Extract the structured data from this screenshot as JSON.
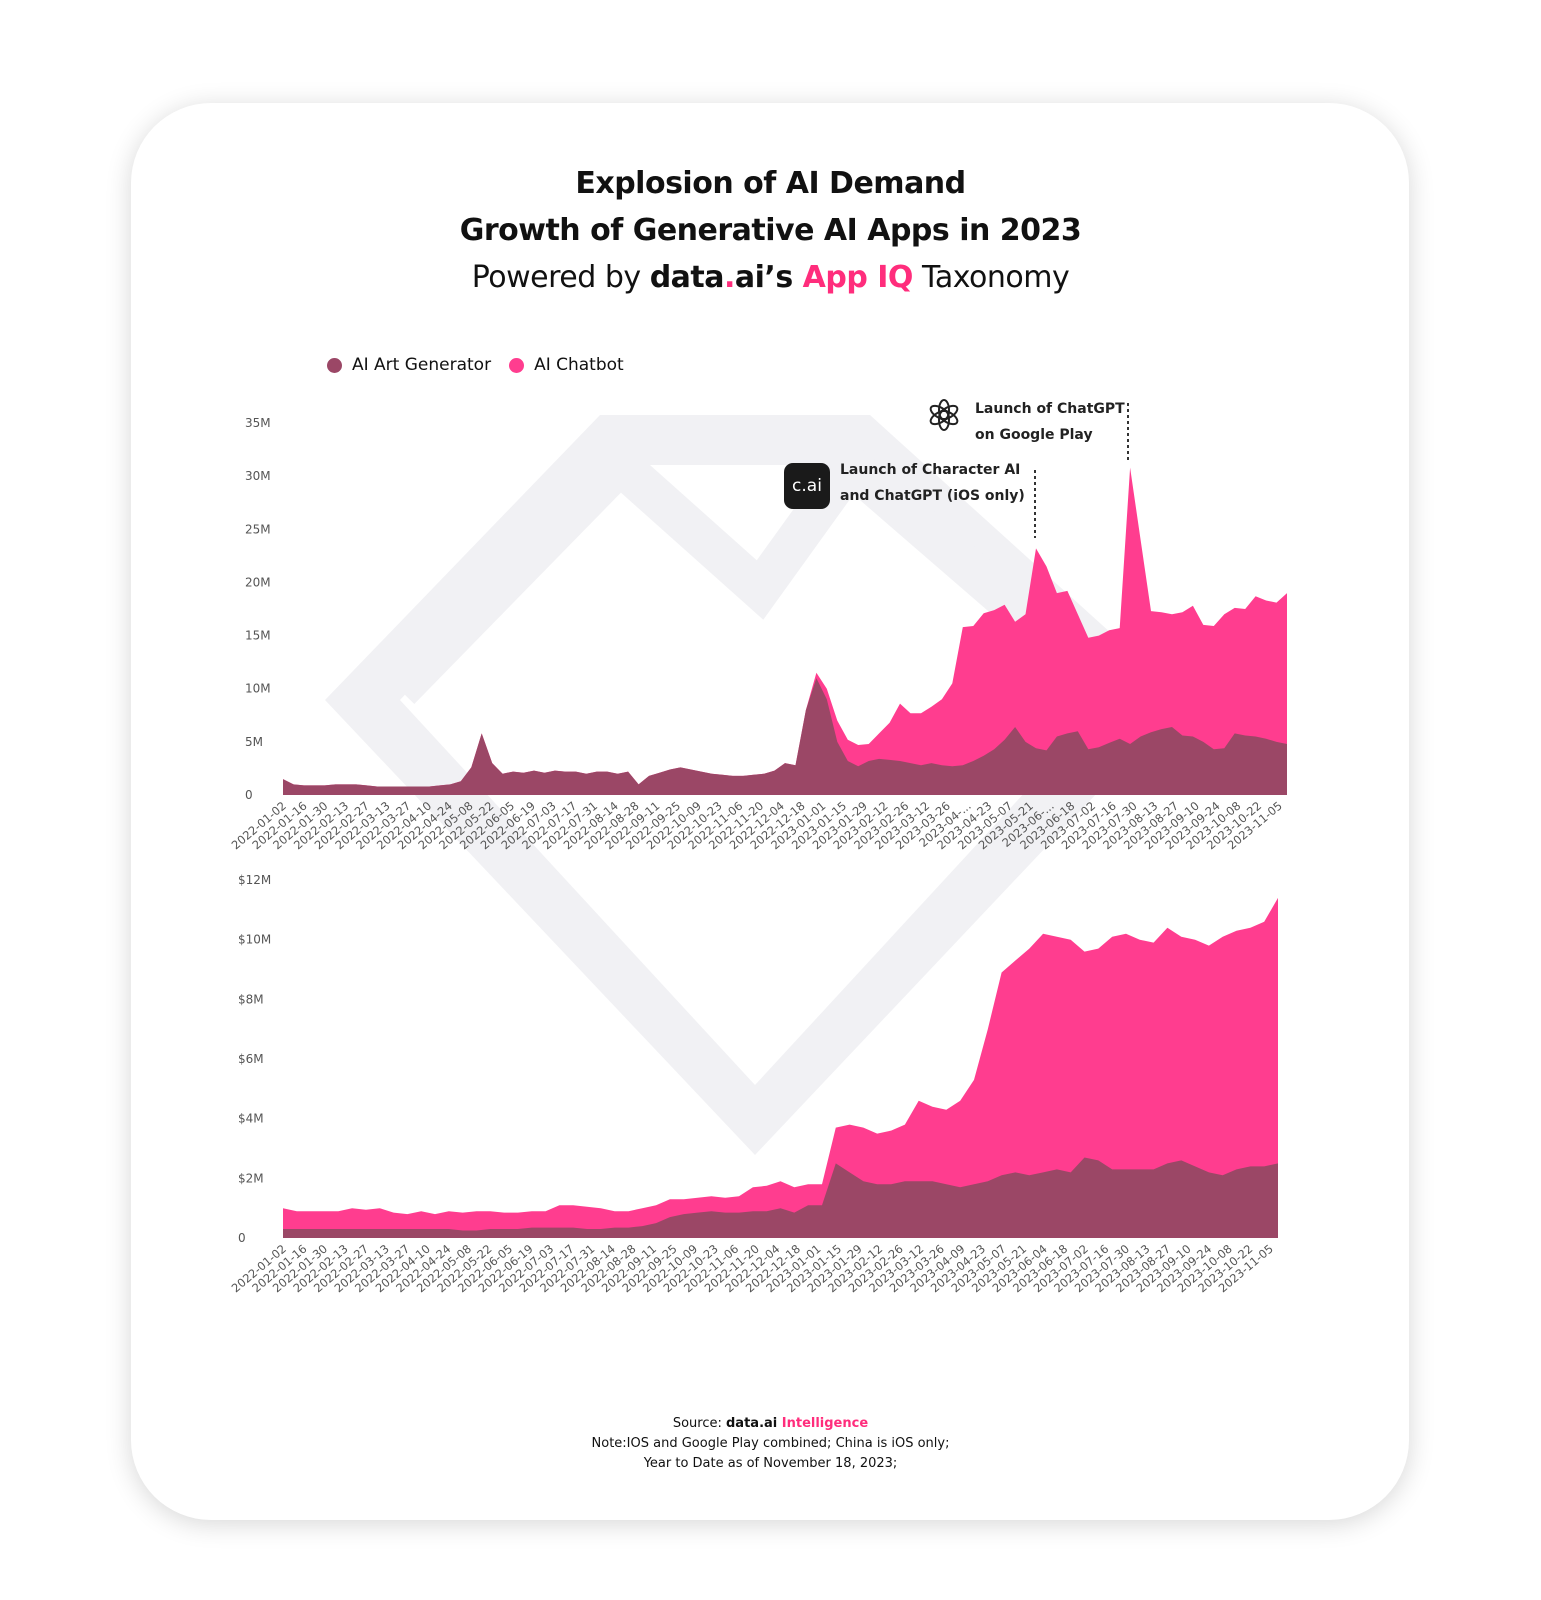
{
  "title": "Explosion of AI Demand",
  "subtitle": "Growth of Generative AI Apps in 2023",
  "powered": {
    "prefix": "Powered by ",
    "brand_left": "data",
    "brand_dot": ".",
    "brand_right": "ai’s ",
    "product": "App IQ",
    "suffix": " Taxonomy"
  },
  "legend": [
    {
      "name": "AI Art Generator",
      "color": "#9b4766"
    },
    {
      "name": "AI Chatbot",
      "color": "#ff3d8f"
    }
  ],
  "annotations": {
    "character_ai_icon": "c.ai",
    "character_ai_line1": "Launch of Character AI",
    "character_ai_line2": "and ChatGPT (iOS only)",
    "chatgpt_line1": "Launch of ChatGPT",
    "chatgpt_line2": "on Google Play"
  },
  "colors": {
    "art_generator": "#9b4766",
    "chatbot": "#ff3d8f",
    "watermark": "#f1f1f4",
    "axis_text": "#555555"
  },
  "footer": {
    "source_label": "Source: ",
    "source_brand": "data.ai",
    "source_brand_accent": " Intelligence",
    "note": "Note:IOS and Google Play combined; China is iOS only;",
    "date_note": "Year to Date as of November 18, 2023;"
  },
  "chart_data": [
    {
      "type": "area",
      "stacked": false,
      "title": "",
      "xlabel": "",
      "ylabel": "",
      "ylim": [
        0,
        35
      ],
      "y_ticks": [
        "0",
        "5M",
        "10M",
        "15M",
        "20M",
        "25M",
        "30M",
        "35M"
      ],
      "x_tick_labels": [
        "2022-01-02",
        "2022-01-16",
        "2022-01-30",
        "2022-02-13",
        "2022-02-27",
        "2022-03-13",
        "2022-03-27",
        "2022-04-10",
        "2022-04-24",
        "2022-05-08",
        "2022-05-22",
        "2022-06-05",
        "2022-06-19",
        "2022-07-03",
        "2022-07-17",
        "2022-07-31",
        "2022-08-14",
        "2022-08-28",
        "2022-09-11",
        "2022-09-25",
        "2022-10-09",
        "2022-10-23",
        "2022-11-06",
        "2022-11-20",
        "2022-12-04",
        "2022-12-18",
        "2023-01-01",
        "2023-01-15",
        "2023-01-29",
        "2023-02-12",
        "2023-02-26",
        "2023-03-12",
        "2023-03-26",
        "2023-04-...",
        "2023-04-23",
        "2023-05-07",
        "2023-05-21",
        "2023-06-...",
        "2023-06-18",
        "2023-07-02",
        "2023-07-16",
        "2023-07-30",
        "2023-08-13",
        "2023-08-27",
        "2023-09-10",
        "2023-09-24",
        "2023-10-08",
        "2023-10-22",
        "2023-11-05"
      ],
      "series": [
        {
          "name": "AI Chatbot",
          "values": [
            1.5,
            1.0,
            0.9,
            0.9,
            0.9,
            1.0,
            1.0,
            1.0,
            0.9,
            0.8,
            0.8,
            0.8,
            0.8,
            0.8,
            0.8,
            0.9,
            1.0,
            1.3,
            2.6,
            5.8,
            3.0,
            2.0,
            2.2,
            2.1,
            2.3,
            2.1,
            2.3,
            2.2,
            2.2,
            2.0,
            2.2,
            2.2,
            2.0,
            2.2,
            1.0,
            1.8,
            2.1,
            2.4,
            2.6,
            2.4,
            2.2,
            2.0,
            1.9,
            1.8,
            1.8,
            1.9,
            2.0,
            2.3,
            3.0,
            2.8,
            8.0,
            11.5,
            10.0,
            7.0,
            5.2,
            4.7,
            4.8,
            5.8,
            6.8,
            8.6,
            7.7,
            7.7,
            8.3,
            9.0,
            10.5,
            15.8,
            15.9,
            17.1,
            17.4,
            17.9,
            16.3,
            17.0,
            23.2,
            21.5,
            19.0,
            19.2,
            17.0,
            14.8,
            15.0,
            15.5,
            15.7,
            30.8,
            24.0,
            17.3,
            17.2,
            17.0,
            17.2,
            17.8,
            16.0,
            15.9,
            17.0,
            17.6,
            17.5,
            18.7,
            18.3,
            18.1,
            19.0
          ]
        },
        {
          "name": "AI Art Generator",
          "values": [
            1.5,
            1.0,
            0.9,
            0.9,
            0.9,
            1.0,
            1.0,
            1.0,
            0.9,
            0.8,
            0.8,
            0.8,
            0.8,
            0.8,
            0.8,
            0.9,
            1.0,
            1.3,
            2.6,
            5.8,
            3.0,
            2.0,
            2.2,
            2.1,
            2.3,
            2.1,
            2.3,
            2.2,
            2.2,
            2.0,
            2.2,
            2.2,
            2.0,
            2.2,
            1.0,
            1.8,
            2.1,
            2.4,
            2.6,
            2.4,
            2.2,
            2.0,
            1.9,
            1.8,
            1.8,
            1.9,
            2.0,
            2.3,
            3.0,
            2.8,
            8.0,
            11.0,
            9.0,
            5.0,
            3.2,
            2.7,
            3.2,
            3.4,
            3.3,
            3.2,
            3.0,
            2.8,
            3.0,
            2.8,
            2.7,
            2.8,
            3.2,
            3.7,
            4.3,
            5.2,
            6.4,
            5.0,
            4.4,
            4.2,
            5.5,
            5.8,
            6.0,
            4.3,
            4.5,
            4.9,
            5.3,
            4.8,
            5.5,
            5.9,
            6.2,
            6.4,
            5.6,
            5.5,
            5.0,
            4.3,
            4.4,
            5.8,
            5.6,
            5.5,
            5.3,
            5.0,
            4.8
          ]
        }
      ]
    },
    {
      "type": "area",
      "stacked": false,
      "title": "",
      "xlabel": "",
      "ylabel": "",
      "ylim": [
        0,
        12
      ],
      "y_ticks": [
        "0",
        "$2M",
        "$4M",
        "$6M",
        "$8M",
        "$10M",
        "$12M"
      ],
      "x_tick_labels": [
        "2022-01-02",
        "2022-01-16",
        "2022-01-30",
        "2022-02-13",
        "2022-02-27",
        "2022-03-13",
        "2022-03-27",
        "2022-04-10",
        "2022-04-24",
        "2022-05-08",
        "2022-05-22",
        "2022-06-05",
        "2022-06-19",
        "2022-07-03",
        "2022-07-17",
        "2022-07-31",
        "2022-08-14",
        "2022-08-28",
        "2022-09-11",
        "2022-09-25",
        "2022-10-09",
        "2022-10-23",
        "2022-11-06",
        "2022-11-20",
        "2022-12-04",
        "2022-12-18",
        "2023-01-01",
        "2023-01-15",
        "2023-01-29",
        "2023-02-12",
        "2023-02-26",
        "2023-03-12",
        "2023-03-26",
        "2023-04-09",
        "2023-04-23",
        "2023-05-07",
        "2023-05-21",
        "2023-06-04",
        "2023-06-18",
        "2023-07-02",
        "2023-07-16",
        "2023-07-30",
        "2023-08-13",
        "2023-08-27",
        "2023-09-10",
        "2023-09-24",
        "2023-10-08",
        "2023-10-22",
        "2023-11-05"
      ],
      "series": [
        {
          "name": "AI Chatbot",
          "values": [
            1.0,
            0.9,
            0.9,
            0.9,
            0.9,
            1.0,
            0.95,
            1.0,
            0.85,
            0.8,
            0.9,
            0.8,
            0.9,
            0.85,
            0.9,
            0.9,
            0.85,
            0.85,
            0.9,
            0.9,
            1.1,
            1.1,
            1.05,
            1.0,
            0.9,
            0.9,
            1.0,
            1.1,
            1.3,
            1.3,
            1.35,
            1.4,
            1.35,
            1.4,
            1.7,
            1.75,
            1.9,
            1.7,
            1.8,
            1.8,
            3.7,
            3.8,
            3.7,
            3.5,
            3.6,
            3.8,
            4.6,
            4.4,
            4.3,
            4.6,
            5.3,
            7.0,
            8.9,
            9.3,
            9.7,
            10.2,
            10.1,
            10.0,
            9.6,
            9.7,
            10.1,
            10.2,
            10.0,
            9.9,
            10.4,
            10.1,
            10.0,
            9.8,
            10.1,
            10.3,
            10.4,
            10.6,
            11.4
          ]
        },
        {
          "name": "AI Art Generator",
          "values": [
            0.3,
            0.3,
            0.3,
            0.3,
            0.3,
            0.3,
            0.3,
            0.3,
            0.3,
            0.3,
            0.3,
            0.3,
            0.3,
            0.25,
            0.25,
            0.3,
            0.3,
            0.3,
            0.35,
            0.35,
            0.35,
            0.35,
            0.3,
            0.3,
            0.35,
            0.35,
            0.4,
            0.5,
            0.7,
            0.8,
            0.85,
            0.9,
            0.85,
            0.85,
            0.9,
            0.9,
            1.0,
            0.85,
            1.1,
            1.1,
            2.5,
            2.2,
            1.9,
            1.8,
            1.8,
            1.9,
            1.9,
            1.9,
            1.8,
            1.7,
            1.8,
            1.9,
            2.1,
            2.2,
            2.1,
            2.2,
            2.3,
            2.2,
            2.7,
            2.6,
            2.3,
            2.3,
            2.3,
            2.3,
            2.5,
            2.6,
            2.4,
            2.2,
            2.1,
            2.3,
            2.4,
            2.4,
            2.5
          ]
        }
      ]
    }
  ]
}
